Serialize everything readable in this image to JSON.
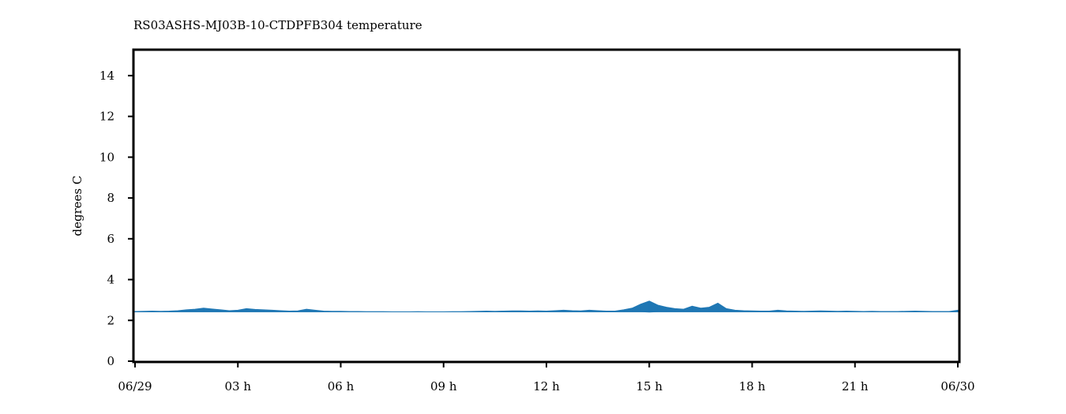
{
  "chart_data": {
    "type": "line",
    "title": "RS03ASHS-MJ03B-10-CTDPFB304 temperature",
    "xlabel": "",
    "ylabel": "degrees C",
    "xlim": [
      0,
      24
    ],
    "ylim": [
      0,
      15
    ],
    "x_ticks": [
      {
        "value": 0,
        "label": "06/29"
      },
      {
        "value": 3,
        "label": "03 h"
      },
      {
        "value": 6,
        "label": "06 h"
      },
      {
        "value": 9,
        "label": "09 h"
      },
      {
        "value": 12,
        "label": "12 h"
      },
      {
        "value": 15,
        "label": "15 h"
      },
      {
        "value": 18,
        "label": "18 h"
      },
      {
        "value": 21,
        "label": "21 h"
      },
      {
        "value": 24,
        "label": "06/30"
      }
    ],
    "y_ticks": [
      0,
      2,
      4,
      6,
      8,
      10,
      12,
      14
    ],
    "grid": false,
    "legend": "none",
    "series": [
      {
        "color": "#1f77b4",
        "baseline": 2.42,
        "x": [
          0.0,
          0.25,
          0.5,
          0.75,
          1.0,
          1.25,
          1.5,
          1.75,
          2.0,
          2.25,
          2.5,
          2.75,
          3.0,
          3.25,
          3.5,
          3.75,
          4.0,
          4.25,
          4.5,
          4.75,
          5.0,
          5.25,
          5.5,
          5.75,
          6.0,
          6.25,
          6.5,
          6.75,
          7.0,
          7.25,
          7.5,
          7.75,
          8.0,
          8.25,
          8.5,
          8.75,
          9.0,
          9.25,
          9.5,
          9.75,
          10.0,
          10.25,
          10.5,
          10.75,
          11.0,
          11.25,
          11.5,
          11.75,
          12.0,
          12.25,
          12.5,
          12.75,
          13.0,
          13.25,
          13.5,
          13.75,
          14.0,
          14.25,
          14.5,
          14.75,
          15.0,
          15.25,
          15.5,
          15.75,
          16.0,
          16.25,
          16.5,
          16.75,
          17.0,
          17.25,
          17.5,
          17.75,
          18.0,
          18.25,
          18.5,
          18.75,
          19.0,
          19.25,
          19.5,
          19.75,
          20.0,
          20.25,
          20.5,
          20.75,
          21.0,
          21.25,
          21.5,
          21.75,
          22.0,
          22.25,
          22.5,
          22.75,
          23.0,
          23.25,
          23.5,
          23.75,
          24.0
        ],
        "y_max": [
          2.44,
          2.45,
          2.46,
          2.45,
          2.46,
          2.48,
          2.52,
          2.55,
          2.6,
          2.56,
          2.52,
          2.48,
          2.5,
          2.58,
          2.54,
          2.52,
          2.5,
          2.48,
          2.46,
          2.47,
          2.55,
          2.5,
          2.46,
          2.45,
          2.45,
          2.44,
          2.44,
          2.43,
          2.43,
          2.43,
          2.42,
          2.42,
          2.42,
          2.43,
          2.42,
          2.42,
          2.42,
          2.43,
          2.43,
          2.44,
          2.45,
          2.46,
          2.45,
          2.46,
          2.47,
          2.47,
          2.46,
          2.47,
          2.46,
          2.48,
          2.5,
          2.48,
          2.47,
          2.5,
          2.48,
          2.46,
          2.46,
          2.52,
          2.6,
          2.8,
          2.95,
          2.75,
          2.65,
          2.58,
          2.55,
          2.7,
          2.6,
          2.65,
          2.85,
          2.58,
          2.5,
          2.48,
          2.47,
          2.46,
          2.46,
          2.5,
          2.47,
          2.46,
          2.45,
          2.46,
          2.47,
          2.46,
          2.45,
          2.46,
          2.45,
          2.44,
          2.45,
          2.44,
          2.44,
          2.44,
          2.45,
          2.46,
          2.45,
          2.44,
          2.44,
          2.44,
          2.5
        ],
        "y_min": [
          2.42,
          2.42,
          2.42,
          2.42,
          2.42,
          2.42,
          2.42,
          2.42,
          2.42,
          2.42,
          2.42,
          2.42,
          2.42,
          2.42,
          2.42,
          2.42,
          2.42,
          2.42,
          2.42,
          2.42,
          2.42,
          2.42,
          2.42,
          2.42,
          2.42,
          2.42,
          2.42,
          2.42,
          2.42,
          2.42,
          2.42,
          2.42,
          2.42,
          2.42,
          2.42,
          2.42,
          2.42,
          2.42,
          2.42,
          2.42,
          2.42,
          2.42,
          2.42,
          2.42,
          2.42,
          2.42,
          2.42,
          2.42,
          2.42,
          2.42,
          2.42,
          2.42,
          2.42,
          2.42,
          2.42,
          2.42,
          2.42,
          2.42,
          2.42,
          2.42,
          2.4,
          2.42,
          2.42,
          2.42,
          2.42,
          2.42,
          2.42,
          2.42,
          2.42,
          2.42,
          2.42,
          2.42,
          2.42,
          2.42,
          2.42,
          2.42,
          2.42,
          2.42,
          2.42,
          2.42,
          2.42,
          2.42,
          2.42,
          2.42,
          2.42,
          2.42,
          2.42,
          2.42,
          2.42,
          2.42,
          2.42,
          2.42,
          2.42,
          2.42,
          2.42,
          2.42,
          2.42
        ]
      }
    ]
  }
}
